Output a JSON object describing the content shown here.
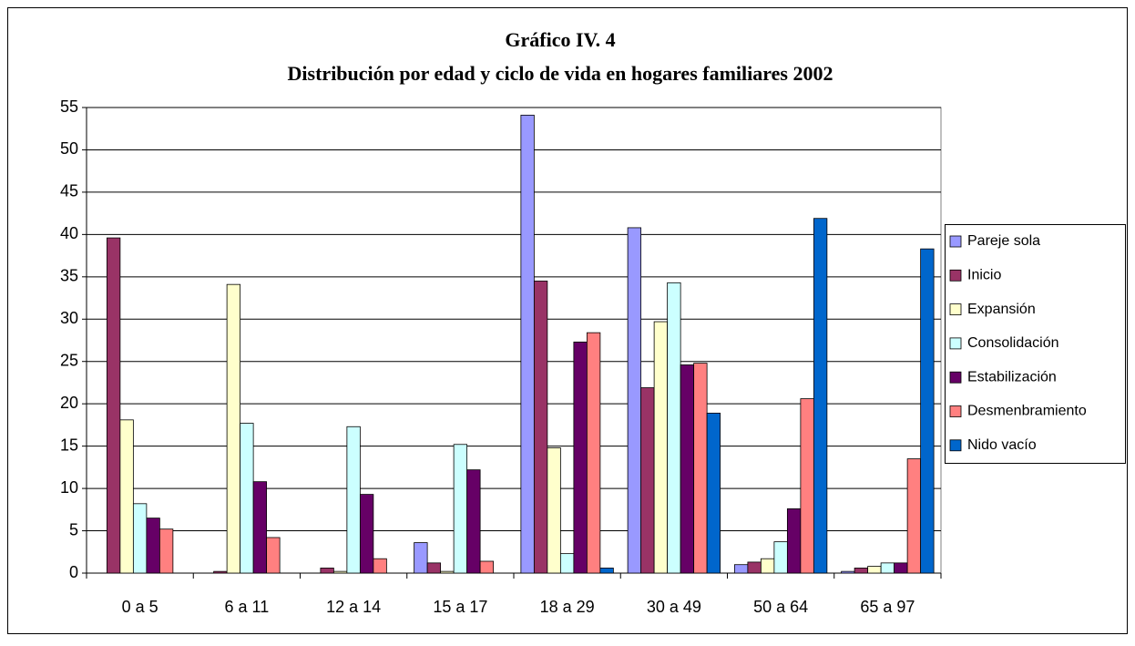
{
  "chart_data": {
    "type": "bar",
    "title": "Gráfico IV. 4",
    "subtitle": "Distribución por edad y ciclo de vida en hogares familiares 2002",
    "categories": [
      "0 a 5",
      "6 a 11",
      "12 a 14",
      "15 a 17",
      "18 a 29",
      "30 a 49",
      "50 a 64",
      "65 a 97"
    ],
    "series": [
      {
        "name": "Pareje sola",
        "color": "#9999ff",
        "values": [
          0,
          0,
          0,
          3.6,
          54.1,
          40.8,
          1.0,
          0.2
        ]
      },
      {
        "name": "Inicio",
        "color": "#993366",
        "values": [
          39.6,
          0.2,
          0.6,
          1.2,
          34.5,
          21.9,
          1.3,
          0.6
        ]
      },
      {
        "name": "Expansión",
        "color": "#ffffcc",
        "values": [
          18.1,
          34.1,
          0.2,
          0.2,
          14.8,
          29.7,
          1.7,
          0.8
        ]
      },
      {
        "name": "Consolidación",
        "color": "#ccffff",
        "values": [
          8.2,
          17.7,
          17.3,
          15.2,
          2.3,
          34.3,
          3.7,
          1.2
        ]
      },
      {
        "name": "Estabilización",
        "color": "#660066",
        "values": [
          6.5,
          10.8,
          9.3,
          12.2,
          27.3,
          24.6,
          7.6,
          1.2
        ]
      },
      {
        "name": "Desmenbramiento",
        "color": "#ff8080",
        "values": [
          5.2,
          4.2,
          1.7,
          1.4,
          28.4,
          24.8,
          20.6,
          13.5
        ]
      },
      {
        "name": "Nido vacío",
        "color": "#0066cc",
        "values": [
          0,
          0,
          0,
          0,
          0.6,
          18.9,
          41.9,
          38.3
        ]
      }
    ],
    "ylim": [
      0,
      55
    ],
    "yticks": [
      0,
      5,
      10,
      15,
      20,
      25,
      30,
      35,
      40,
      45,
      50,
      55
    ],
    "grid": true,
    "legend": "right"
  }
}
